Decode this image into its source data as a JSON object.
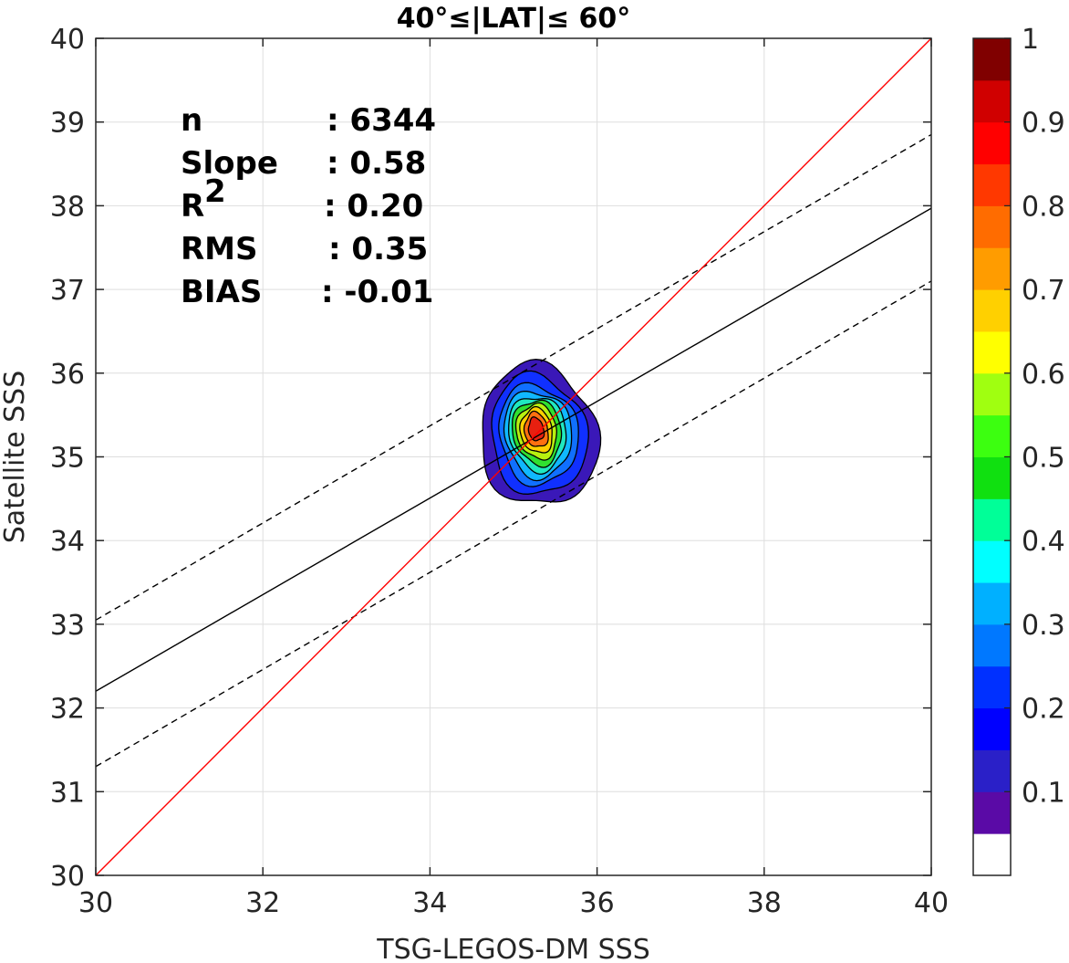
{
  "chart_data": {
    "type": "contour",
    "title": "40°≤|LAT|≤ 60°",
    "xlabel": "TSG-LEGOS-DM SSS",
    "ylabel": "Satellite SSS",
    "xlim": [
      30,
      40
    ],
    "ylim": [
      30,
      40
    ],
    "xticks": [
      "30",
      "32",
      "34",
      "36",
      "38",
      "40"
    ],
    "yticks": [
      "30",
      "31",
      "32",
      "33",
      "34",
      "35",
      "36",
      "37",
      "38",
      "39",
      "40"
    ],
    "grid": true,
    "stats": [
      {
        "label": "n",
        "value": ": 6344"
      },
      {
        "label": "Slope",
        "value": ": 0.58"
      },
      {
        "label": "R",
        "sup": "2",
        "value": ": 0.20"
      },
      {
        "label": "RMS",
        "value": ": 0.35"
      },
      {
        "label": "BIAS",
        "value": ": -0.01"
      }
    ],
    "lines": {
      "one_to_one": {
        "color": "#ff0000",
        "x": [
          30,
          40
        ],
        "y": [
          30,
          40
        ]
      },
      "fit": {
        "color": "#000000",
        "style": "solid",
        "x": [
          30,
          40
        ],
        "y": [
          32.2,
          37.97
        ]
      },
      "fit_upper": {
        "color": "#000000",
        "style": "dashed",
        "x": [
          30,
          40
        ],
        "y": [
          33.05,
          38.85
        ]
      },
      "fit_lower": {
        "color": "#000000",
        "style": "dashed",
        "x": [
          30,
          40
        ],
        "y": [
          31.3,
          37.1
        ]
      }
    },
    "density_peak": {
      "x": 35.3,
      "y": 35.25
    },
    "contour_levels": [
      {
        "level": 0.05,
        "color": "#3a18b8",
        "rx": 0.7,
        "ry": 0.85
      },
      {
        "level": 0.1,
        "color": "#1030ff",
        "rx": 0.57,
        "ry": 0.72
      },
      {
        "level": 0.2,
        "color": "#1070ff",
        "rx": 0.47,
        "ry": 0.6
      },
      {
        "level": 0.3,
        "color": "#10b8ff",
        "rx": 0.4,
        "ry": 0.52
      },
      {
        "level": 0.4,
        "color": "#20e8c0",
        "rx": 0.34,
        "ry": 0.45
      },
      {
        "level": 0.5,
        "color": "#30e030",
        "rx": 0.29,
        "ry": 0.39
      },
      {
        "level": 0.6,
        "color": "#b8f010",
        "rx": 0.24,
        "ry": 0.33
      },
      {
        "level": 0.7,
        "color": "#ffd000",
        "rx": 0.19,
        "ry": 0.27
      },
      {
        "level": 0.8,
        "color": "#ff7010",
        "rx": 0.14,
        "ry": 0.21
      },
      {
        "level": 0.9,
        "color": "#e82010",
        "rx": 0.09,
        "ry": 0.14
      }
    ],
    "colorbar": {
      "range": [
        0,
        1
      ],
      "ticks": [
        "0.1",
        "0.2",
        "0.3",
        "0.4",
        "0.5",
        "0.6",
        "0.7",
        "0.8",
        "0.9",
        "1"
      ],
      "colors": [
        "#ffffff",
        "#5a0aa6",
        "#2a20c8",
        "#0000ff",
        "#0030ff",
        "#0078ff",
        "#00b0ff",
        "#00ffff",
        "#00ff98",
        "#10e010",
        "#3cff10",
        "#a0ff10",
        "#ffff00",
        "#ffd000",
        "#ff9c00",
        "#ff6c00",
        "#ff3800",
        "#ff0000",
        "#d00000",
        "#800000"
      ]
    }
  }
}
